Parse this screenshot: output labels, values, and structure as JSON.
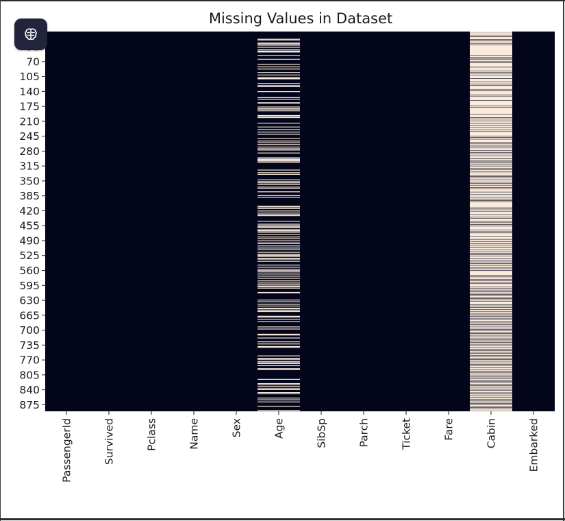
{
  "chart_data": {
    "type": "heatmap",
    "title": "Missing Values in Dataset",
    "xlabel": "",
    "ylabel": "",
    "n_rows": 891,
    "x_categories": [
      "PassengerId",
      "Survived",
      "Pclass",
      "Name",
      "Sex",
      "Age",
      "SibSp",
      "Parch",
      "Ticket",
      "Fare",
      "Cabin",
      "Embarked"
    ],
    "y_ticks": [
      35,
      70,
      105,
      140,
      175,
      210,
      245,
      280,
      315,
      350,
      385,
      420,
      455,
      490,
      525,
      560,
      595,
      630,
      665,
      700,
      735,
      770,
      805,
      840,
      875
    ],
    "y_tick_labels": [
      "35",
      "70",
      "105",
      "140",
      "175",
      "210",
      "245",
      "280",
      "315",
      "350",
      "385",
      "420",
      "455",
      "490",
      "525",
      "560",
      "595",
      "630",
      "665",
      "700",
      "735",
      "770",
      "805",
      "840",
      "875"
    ],
    "colors": {
      "present": "#03051a",
      "missing": "#faebdd"
    },
    "missing_rows": {
      "Age": [
        [
          17,
          17
        ],
        [
          19,
          19
        ],
        [
          26,
          26
        ],
        [
          28,
          29
        ],
        [
          31,
          32
        ],
        [
          36,
          36
        ],
        [
          42,
          42
        ],
        [
          45,
          48
        ],
        [
          55,
          55
        ],
        [
          64,
          65
        ],
        [
          76,
          77
        ],
        [
          82,
          82
        ],
        [
          87,
          88
        ],
        [
          95,
          95
        ],
        [
          101,
          101
        ],
        [
          107,
          107
        ],
        [
          109,
          111
        ],
        [
          121,
          121
        ],
        [
          126,
          126
        ],
        [
          128,
          128
        ],
        [
          140,
          140
        ],
        [
          154,
          154
        ],
        [
          158,
          159
        ],
        [
          166,
          168
        ],
        [
          176,
          176
        ],
        [
          180,
          182
        ],
        [
          185,
          186
        ],
        [
          196,
          196
        ],
        [
          198,
          198
        ],
        [
          201,
          201
        ],
        [
          214,
          214
        ],
        [
          223,
          223
        ],
        [
          229,
          229
        ],
        [
          235,
          235
        ],
        [
          240,
          241
        ],
        [
          250,
          250
        ],
        [
          256,
          256
        ],
        [
          260,
          261
        ],
        [
          264,
          264
        ],
        [
          270,
          271
        ],
        [
          274,
          274
        ],
        [
          277,
          278
        ],
        [
          284,
          284
        ],
        [
          295,
          295
        ],
        [
          298,
          298
        ],
        [
          300,
          302
        ],
        [
          303,
          304
        ],
        [
          306,
          306
        ],
        [
          324,
          324
        ],
        [
          330,
          331
        ],
        [
          334,
          335
        ],
        [
          347,
          347
        ],
        [
          351,
          351
        ],
        [
          354,
          355
        ],
        [
          358,
          359
        ],
        [
          364,
          364
        ],
        [
          367,
          368
        ],
        [
          375,
          376
        ],
        [
          384,
          385
        ],
        [
          388,
          388
        ],
        [
          409,
          411
        ],
        [
          413,
          415
        ],
        [
          420,
          421
        ],
        [
          425,
          425
        ],
        [
          428,
          428
        ],
        [
          431,
          431
        ],
        [
          444,
          444
        ],
        [
          451,
          451
        ],
        [
          454,
          454
        ],
        [
          457,
          457
        ],
        [
          459,
          459
        ],
        [
          464,
          464
        ],
        [
          466,
          468
        ],
        [
          470,
          471
        ],
        [
          475,
          475
        ],
        [
          481,
          482
        ],
        [
          485,
          485
        ],
        [
          490,
          491
        ],
        [
          495,
          497
        ],
        [
          502,
          502
        ],
        [
          507,
          507
        ],
        [
          511,
          511
        ],
        [
          517,
          517
        ],
        [
          522,
          522
        ],
        [
          524,
          524
        ],
        [
          527,
          527
        ],
        [
          531,
          531
        ],
        [
          533,
          533
        ],
        [
          538,
          538
        ],
        [
          547,
          547
        ],
        [
          552,
          552
        ],
        [
          557,
          557
        ],
        [
          560,
          560
        ],
        [
          563,
          564
        ],
        [
          568,
          568
        ],
        [
          573,
          573
        ],
        [
          578,
          578
        ],
        [
          584,
          584
        ],
        [
          589,
          589
        ],
        [
          593,
          593
        ],
        [
          596,
          596
        ],
        [
          598,
          598
        ],
        [
          601,
          602
        ],
        [
          611,
          613
        ],
        [
          629,
          629
        ],
        [
          633,
          633
        ],
        [
          639,
          639
        ],
        [
          643,
          643
        ],
        [
          648,
          648
        ],
        [
          650,
          650
        ],
        [
          653,
          653
        ],
        [
          656,
          656
        ],
        [
          667,
          667
        ],
        [
          669,
          669
        ],
        [
          674,
          674
        ],
        [
          680,
          680
        ],
        [
          692,
          692
        ],
        [
          697,
          697
        ],
        [
          709,
          709
        ],
        [
          711,
          711
        ],
        [
          718,
          718
        ],
        [
          727,
          727
        ],
        [
          732,
          732
        ],
        [
          738,
          739
        ],
        [
          740,
          741
        ],
        [
          760,
          760
        ],
        [
          766,
          766
        ],
        [
          768,
          768
        ],
        [
          773,
          773
        ],
        [
          776,
          776
        ],
        [
          778,
          778
        ],
        [
          783,
          783
        ],
        [
          790,
          790
        ],
        [
          792,
          793
        ],
        [
          815,
          815
        ],
        [
          825,
          826
        ],
        [
          828,
          828
        ],
        [
          832,
          832
        ],
        [
          837,
          837
        ],
        [
          839,
          839
        ],
        [
          846,
          846
        ],
        [
          849,
          849
        ],
        [
          859,
          859
        ],
        [
          863,
          863
        ],
        [
          868,
          868
        ],
        [
          878,
          878
        ],
        [
          888,
          888
        ]
      ],
      "Cabin": [
        [
          0,
          0
        ],
        [
          2,
          2
        ],
        [
          4,
          6
        ],
        [
          7,
          9
        ],
        [
          12,
          17
        ],
        [
          19,
          20
        ],
        [
          22,
          22
        ],
        [
          24,
          26
        ],
        [
          28,
          30
        ],
        [
          32,
          54
        ],
        [
          56,
          60
        ],
        [
          63,
          64
        ],
        [
          66,
          69
        ],
        [
          71,
          72
        ],
        [
          74,
          82
        ],
        [
          84,
          86
        ],
        [
          87,
          91
        ],
        [
          93,
          95
        ],
        [
          98,
          101
        ],
        [
          103,
          109
        ],
        [
          111,
          117
        ],
        [
          119,
          122
        ],
        [
          124,
          125
        ],
        [
          127,
          135
        ],
        [
          137,
          138
        ],
        [
          140,
          147
        ],
        [
          149,
          150
        ],
        [
          152,
          160
        ],
        [
          162,
          173
        ],
        [
          175,
          176
        ],
        [
          178,
          192
        ],
        [
          194,
          200
        ],
        [
          202,
          204
        ],
        [
          206,
          208
        ],
        [
          210,
          214
        ],
        [
          216,
          219
        ],
        [
          221,
          224
        ],
        [
          226,
          229
        ],
        [
          231,
          233
        ],
        [
          235,
          244
        ],
        [
          246,
          247
        ],
        [
          249,
          251
        ],
        [
          253,
          258
        ],
        [
          260,
          262
        ],
        [
          264,
          267
        ],
        [
          269,
          270
        ],
        [
          272,
          272
        ],
        [
          274,
          278
        ],
        [
          280,
          282
        ],
        [
          284,
          286
        ],
        [
          288,
          290
        ],
        [
          292,
          297
        ],
        [
          299,
          301
        ],
        [
          303,
          304
        ],
        [
          306,
          307
        ],
        [
          309,
          311
        ],
        [
          313,
          314
        ],
        [
          316,
          319
        ],
        [
          321,
          323
        ],
        [
          325,
          328
        ],
        [
          330,
          330
        ],
        [
          332,
          336
        ],
        [
          338,
          339
        ],
        [
          341,
          342
        ],
        [
          344,
          346
        ],
        [
          348,
          352
        ],
        [
          354,
          355
        ],
        [
          357,
          359
        ],
        [
          361,
          364
        ],
        [
          366,
          368
        ],
        [
          370,
          375
        ],
        [
          377,
          381
        ],
        [
          383,
          387
        ],
        [
          389,
          389
        ],
        [
          391,
          392
        ],
        [
          394,
          395
        ],
        [
          397,
          398
        ],
        [
          400,
          412
        ],
        [
          414,
          415
        ],
        [
          417,
          420
        ],
        [
          422,
          428
        ],
        [
          430,
          434
        ],
        [
          436,
          437
        ],
        [
          439,
          444
        ],
        [
          446,
          447
        ],
        [
          449,
          451
        ],
        [
          453,
          455
        ],
        [
          457,
          464
        ],
        [
          466,
          468
        ],
        [
          470,
          471
        ],
        [
          473,
          479
        ],
        [
          481,
          486
        ],
        [
          488,
          491
        ],
        [
          493,
          496
        ],
        [
          498,
          500
        ],
        [
          502,
          504
        ],
        [
          506,
          506
        ],
        [
          508,
          511
        ],
        [
          513,
          515
        ],
        [
          517,
          519
        ],
        [
          521,
          522
        ],
        [
          524,
          525
        ],
        [
          527,
          532
        ],
        [
          534,
          535
        ],
        [
          537,
          539
        ],
        [
          541,
          543
        ],
        [
          545,
          547
        ],
        [
          549,
          552
        ],
        [
          554,
          555
        ],
        [
          557,
          559
        ],
        [
          561,
          561
        ],
        [
          563,
          570
        ],
        [
          572,
          574
        ],
        [
          576,
          576
        ],
        [
          578,
          580
        ],
        [
          582,
          583
        ],
        [
          585,
          587
        ],
        [
          589,
          590
        ],
        [
          592,
          598
        ],
        [
          600,
          601
        ],
        [
          603,
          605
        ],
        [
          607,
          609
        ],
        [
          611,
          612
        ],
        [
          614,
          615
        ],
        [
          617,
          618
        ],
        [
          620,
          622
        ],
        [
          624,
          625
        ],
        [
          627,
          628
        ],
        [
          630,
          631
        ],
        [
          633,
          639
        ],
        [
          641,
          642
        ],
        [
          644,
          646
        ],
        [
          648,
          651
        ],
        [
          653,
          656
        ],
        [
          658,
          661
        ],
        [
          663,
          664
        ],
        [
          666,
          667
        ],
        [
          669,
          671
        ],
        [
          673,
          674
        ],
        [
          676,
          678
        ],
        [
          680,
          682
        ],
        [
          684,
          686
        ],
        [
          688,
          690
        ],
        [
          692,
          694
        ],
        [
          696,
          697
        ],
        [
          699,
          700
        ],
        [
          702,
          704
        ],
        [
          706,
          707
        ],
        [
          709,
          711
        ],
        [
          713,
          715
        ],
        [
          717,
          719
        ],
        [
          721,
          722
        ],
        [
          724,
          725
        ],
        [
          727,
          728
        ],
        [
          730,
          732
        ],
        [
          734,
          736
        ],
        [
          738,
          740
        ],
        [
          742,
          744
        ],
        [
          746,
          747
        ],
        [
          749,
          751
        ],
        [
          753,
          754
        ],
        [
          756,
          758
        ],
        [
          760,
          762
        ],
        [
          764,
          765
        ],
        [
          767,
          768
        ],
        [
          770,
          772
        ],
        [
          774,
          776
        ],
        [
          778,
          779
        ],
        [
          781,
          782
        ],
        [
          784,
          787
        ],
        [
          789,
          791
        ],
        [
          793,
          795
        ],
        [
          797,
          798
        ],
        [
          800,
          802
        ],
        [
          804,
          806
        ],
        [
          808,
          809
        ],
        [
          811,
          813
        ],
        [
          815,
          816
        ],
        [
          818,
          819
        ],
        [
          821,
          822
        ],
        [
          824,
          826
        ],
        [
          828,
          829
        ],
        [
          831,
          833
        ],
        [
          835,
          837
        ],
        [
          839,
          840
        ],
        [
          842,
          846
        ],
        [
          848,
          849
        ],
        [
          851,
          853
        ],
        [
          855,
          857
        ],
        [
          859,
          861
        ],
        [
          863,
          865
        ],
        [
          867,
          868
        ],
        [
          870,
          871
        ],
        [
          873,
          874
        ],
        [
          876,
          878
        ],
        [
          880,
          881
        ],
        [
          883,
          884
        ],
        [
          886,
          886
        ],
        [
          888,
          888
        ],
        [
          890,
          890
        ]
      ],
      "Embarked": []
    }
  }
}
